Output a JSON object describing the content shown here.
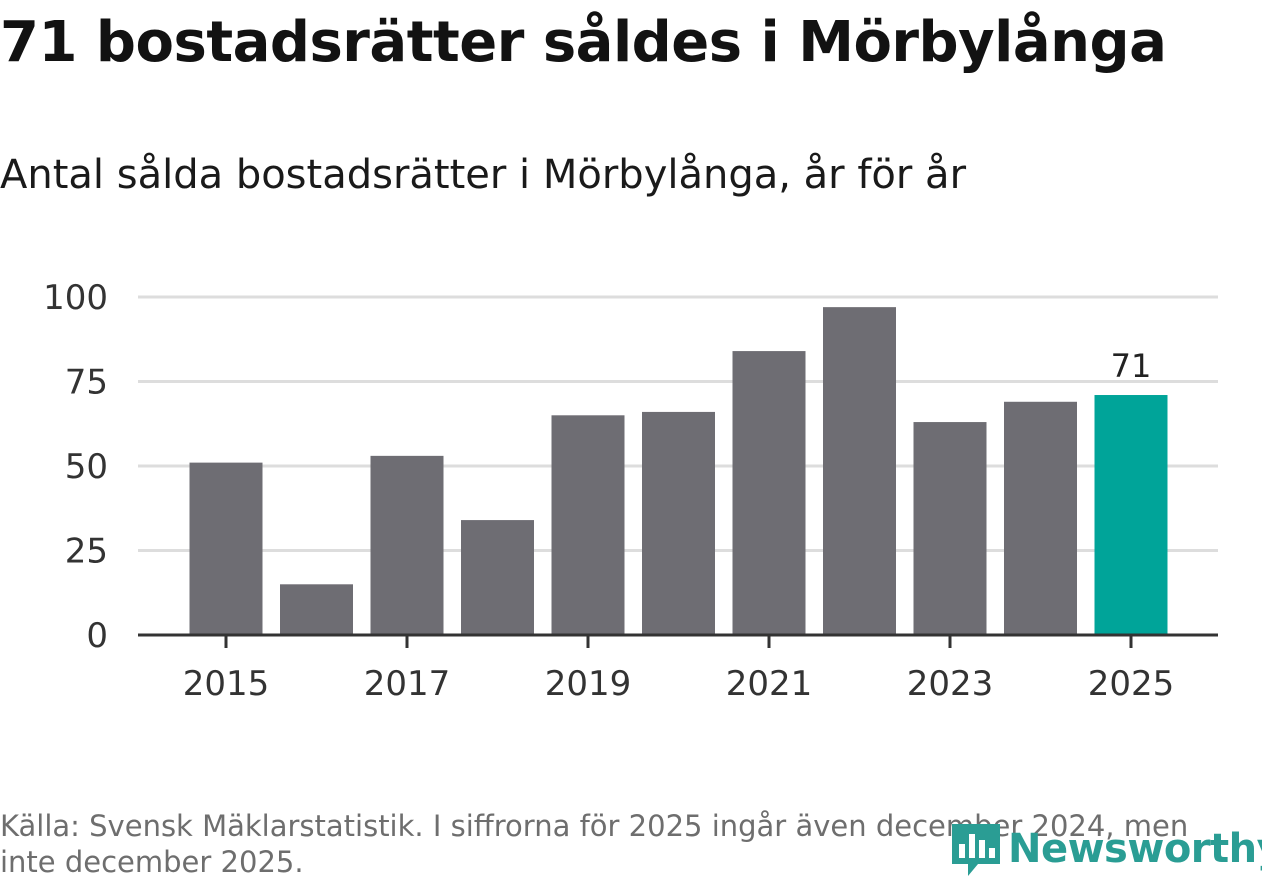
{
  "title": "71 bostadsrätter såldes i Mörbylånga",
  "subtitle": "Antal sålda bostadsrätter i Mörbylånga, år för år",
  "source": "Källa: Svensk Mäklarstatistik. I siffrorna för 2025 ingår även december 2024, men inte december 2025.",
  "logo": {
    "text": "Newsworthy",
    "icon": "bar-chart-logo-icon"
  },
  "colors": {
    "bar": "#6e6d73",
    "highlight": "#00a499",
    "grid": "#dddddd",
    "axis": "#333333",
    "logo": "#2a9d94"
  },
  "chart_data": {
    "type": "bar",
    "categories": [
      "2015",
      "2016",
      "2017",
      "2018",
      "2019",
      "2020",
      "2021",
      "2022",
      "2023",
      "2024",
      "2025"
    ],
    "values": [
      51,
      15,
      53,
      34,
      65,
      66,
      84,
      97,
      63,
      69,
      71
    ],
    "highlight_index": 10,
    "highlight_label": "71",
    "yticks": [
      "0",
      "25",
      "50",
      "75",
      "100"
    ],
    "ytick_values": [
      0,
      25,
      50,
      75,
      100
    ],
    "xtick_labels": [
      "2015",
      "2017",
      "2019",
      "2021",
      "2023",
      "2025"
    ],
    "ylim": [
      0,
      100
    ],
    "xlabel": "",
    "ylabel": "",
    "grid": true
  }
}
